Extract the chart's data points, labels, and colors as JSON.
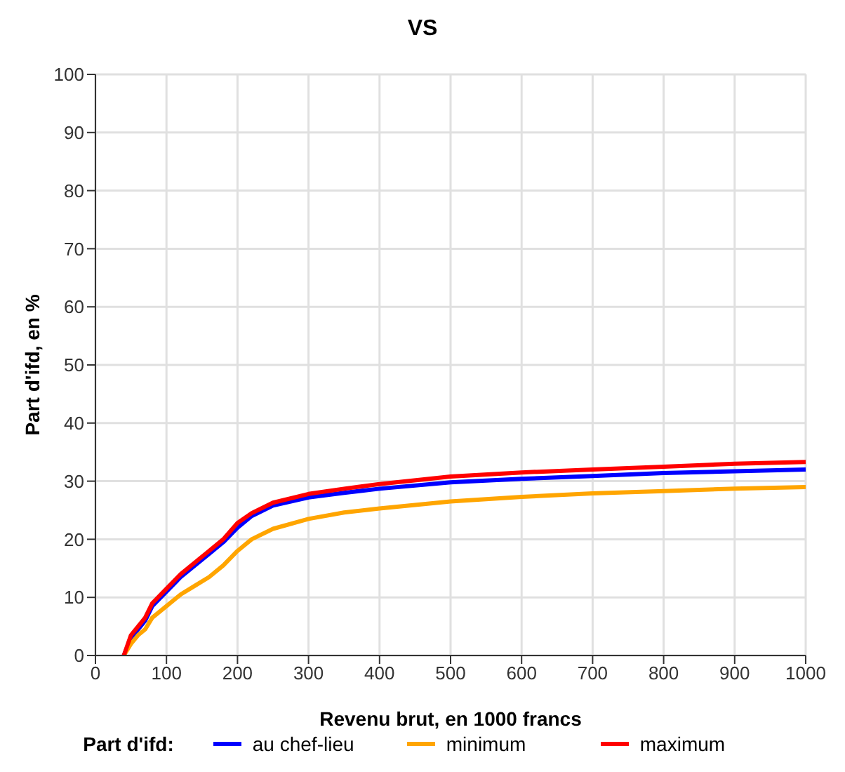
{
  "chart_data": {
    "type": "line",
    "title": "VS",
    "xlabel": "Revenu brut, en 1000 francs",
    "ylabel": "Part d'ifd, en %",
    "legend_title": "Part d'ifd:",
    "x": [
      40,
      50,
      60,
      70,
      80,
      100,
      120,
      140,
      160,
      180,
      200,
      220,
      250,
      300,
      350,
      400,
      500,
      600,
      700,
      800,
      900,
      1000
    ],
    "series": [
      {
        "name": "au chef-lieu",
        "color": "#0000ff",
        "values": [
          0,
          3,
          4.5,
          6,
          8.5,
          11,
          13.5,
          15.5,
          17.5,
          19.5,
          22,
          24,
          25.8,
          27.2,
          28,
          28.7,
          29.8,
          30.4,
          30.9,
          31.4,
          31.7,
          32
        ]
      },
      {
        "name": "minimum",
        "color": "#ffa500",
        "values": [
          0,
          2,
          3.5,
          4.5,
          6.5,
          8.5,
          10.5,
          12,
          13.5,
          15.5,
          18,
          20,
          21.8,
          23.5,
          24.6,
          25.3,
          26.5,
          27.3,
          27.9,
          28.3,
          28.7,
          29
        ]
      },
      {
        "name": "maximum",
        "color": "#ff0000",
        "values": [
          0,
          3.5,
          5,
          6.5,
          9,
          11.5,
          14,
          16,
          18,
          20,
          22.8,
          24.5,
          26.3,
          27.8,
          28.7,
          29.5,
          30.8,
          31.5,
          32,
          32.5,
          33,
          33.3
        ]
      }
    ],
    "xlim": [
      0,
      1000
    ],
    "xticks": [
      0,
      100,
      200,
      300,
      400,
      500,
      600,
      700,
      800,
      900,
      1000
    ],
    "ylim": [
      0,
      100
    ],
    "yticks": [
      0,
      10,
      20,
      30,
      40,
      50,
      60,
      70,
      80,
      90,
      100
    ],
    "grid": true,
    "legend": "bottom",
    "marker": "none",
    "line_style": "solid"
  }
}
